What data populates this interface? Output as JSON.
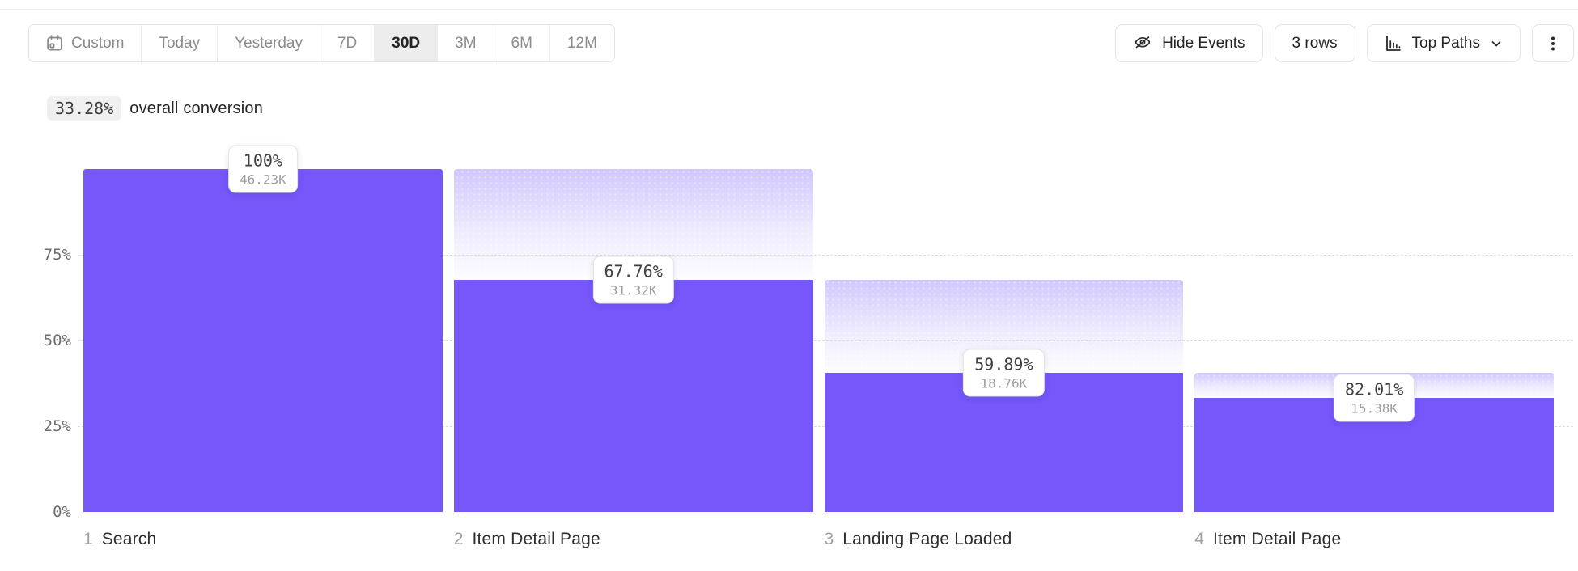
{
  "toolbar": {
    "date_ranges": [
      {
        "label": "Custom",
        "icon": "calendar-icon",
        "selected": false
      },
      {
        "label": "Today",
        "selected": false
      },
      {
        "label": "Yesterday",
        "selected": false
      },
      {
        "label": "7D",
        "selected": false
      },
      {
        "label": "30D",
        "selected": true
      },
      {
        "label": "3M",
        "selected": false
      },
      {
        "label": "6M",
        "selected": false
      },
      {
        "label": "12M",
        "selected": false
      }
    ],
    "hide_events_label": "Hide Events",
    "rows_label": "3 rows",
    "top_paths_label": "Top Paths"
  },
  "summary": {
    "value": "33.28%",
    "label": "overall conversion"
  },
  "chart_data": {
    "type": "bar",
    "subtype": "funnel",
    "title": "",
    "xlabel": "",
    "ylabel": "",
    "ylim": [
      0,
      100
    ],
    "grid": "dashed horizontal at 25/50/75",
    "yticks": [
      {
        "label": "75%",
        "pct": 75
      },
      {
        "label": "50%",
        "pct": 50
      },
      {
        "label": "25%",
        "pct": 25
      },
      {
        "label": "0%",
        "pct": 0
      }
    ],
    "bar_color": "#7557FA",
    "dropoff_gradient_top_color": "#D8D0F8",
    "steps": [
      {
        "index": "1",
        "name": "Search",
        "conversion_from_previous": "100%",
        "count_label": "46.23K",
        "count": 46230,
        "pct_of_total": 100
      },
      {
        "index": "2",
        "name": "Item Detail Page",
        "conversion_from_previous": "67.76%",
        "count_label": "31.32K",
        "count": 31320,
        "pct_of_total": 67.75
      },
      {
        "index": "3",
        "name": "Landing Page Loaded",
        "conversion_from_previous": "59.89%",
        "count_label": "18.76K",
        "count": 18760,
        "pct_of_total": 40.58
      },
      {
        "index": "4",
        "name": "Item Detail Page",
        "conversion_from_previous": "82.01%",
        "count_label": "15.38K",
        "count": 15380,
        "pct_of_total": 33.27
      }
    ]
  }
}
